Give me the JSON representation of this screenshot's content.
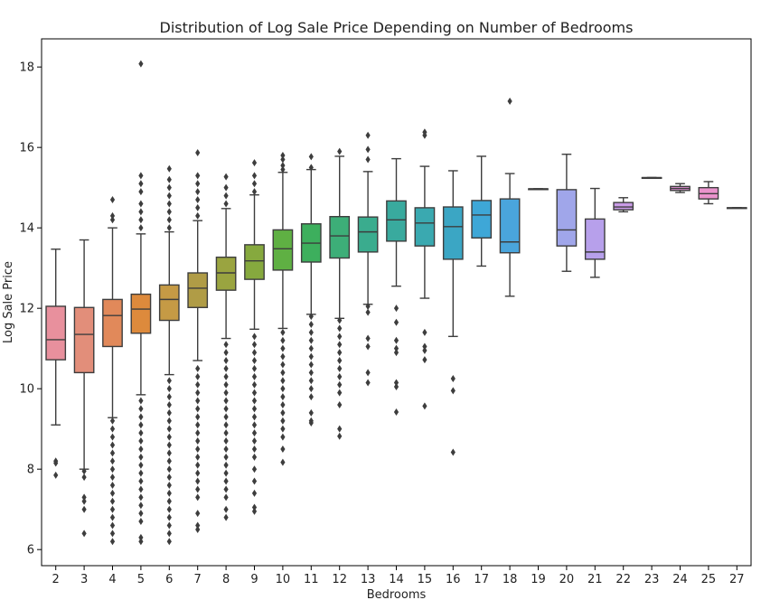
{
  "chart_data": {
    "type": "box",
    "title": "Distribution of Log Sale Price Depending on Number of Bedrooms",
    "xlabel": "Bedrooms",
    "ylabel": "Log Sale Price",
    "ylim": [
      5.6,
      18.7
    ],
    "yticks": [
      6,
      8,
      10,
      12,
      14,
      16,
      18
    ],
    "grid": false,
    "categories": [
      "2",
      "3",
      "4",
      "5",
      "6",
      "7",
      "8",
      "9",
      "10",
      "11",
      "12",
      "13",
      "14",
      "15",
      "16",
      "17",
      "18",
      "19",
      "20",
      "21",
      "22",
      "23",
      "24",
      "25",
      "27"
    ],
    "series": [
      {
        "category": "2",
        "color": "#e8909d",
        "whislo": 9.1,
        "q1": 10.72,
        "med": 11.22,
        "q3": 12.05,
        "whishi": 13.47,
        "fliers": [
          8.2,
          8.15,
          7.85
        ]
      },
      {
        "category": "3",
        "color": "#e28e7a",
        "whislo": 8.0,
        "q1": 10.4,
        "med": 11.35,
        "q3": 12.02,
        "whishi": 13.7,
        "fliers": [
          7.95,
          7.8,
          7.3,
          7.2,
          7.0,
          6.4
        ]
      },
      {
        "category": "4",
        "color": "#e1895a",
        "whislo": 9.28,
        "q1": 11.05,
        "med": 11.82,
        "q3": 12.22,
        "whishi": 14.0,
        "fliers": [
          14.2,
          14.3,
          14.7,
          9.2,
          9.0,
          8.8,
          8.6,
          8.4,
          8.2,
          8.0,
          7.8,
          7.6,
          7.4,
          7.2,
          7.0,
          6.8,
          6.6,
          6.4,
          6.2
        ]
      },
      {
        "category": "5",
        "color": "#dd8a3c",
        "whislo": 9.85,
        "q1": 11.38,
        "med": 11.98,
        "q3": 12.35,
        "whishi": 13.85,
        "fliers": [
          14.0,
          14.2,
          14.4,
          14.6,
          14.9,
          15.1,
          15.3,
          18.08,
          9.7,
          9.5,
          9.3,
          9.1,
          8.9,
          8.7,
          8.5,
          8.3,
          8.1,
          7.9,
          7.7,
          7.5,
          7.3,
          7.1,
          6.9,
          6.7,
          6.3,
          6.2
        ]
      },
      {
        "category": "6",
        "color": "#c59a45",
        "whislo": 10.35,
        "q1": 11.7,
        "med": 12.22,
        "q3": 12.58,
        "whishi": 13.9,
        "fliers": [
          14.0,
          14.2,
          14.4,
          14.6,
          14.8,
          15.0,
          15.2,
          15.47,
          10.2,
          10.0,
          9.8,
          9.6,
          9.4,
          9.2,
          9.0,
          8.8,
          8.6,
          8.4,
          8.2,
          8.0,
          7.8,
          7.6,
          7.4,
          7.2,
          7.0,
          6.8,
          6.6,
          6.4,
          6.2
        ]
      },
      {
        "category": "7",
        "color": "#b09c46",
        "whislo": 10.7,
        "q1": 12.02,
        "med": 12.5,
        "q3": 12.88,
        "whishi": 14.18,
        "fliers": [
          14.3,
          14.5,
          14.7,
          14.9,
          15.1,
          15.3,
          15.87,
          10.5,
          10.3,
          10.1,
          9.9,
          9.7,
          9.5,
          9.3,
          9.1,
          8.9,
          8.7,
          8.5,
          8.3,
          8.1,
          7.9,
          7.7,
          7.5,
          7.3,
          6.9,
          6.6,
          6.5
        ]
      },
      {
        "category": "8",
        "color": "#9aa440",
        "whislo": 11.25,
        "q1": 12.45,
        "med": 12.88,
        "q3": 13.27,
        "whishi": 14.48,
        "fliers": [
          14.6,
          14.8,
          15.0,
          15.27,
          11.1,
          10.9,
          10.7,
          10.5,
          10.3,
          10.1,
          9.9,
          9.7,
          9.5,
          9.3,
          9.1,
          8.9,
          8.7,
          8.5,
          8.3,
          8.1,
          7.9,
          7.7,
          7.5,
          7.3,
          7.0,
          6.8
        ]
      },
      {
        "category": "9",
        "color": "#86a93e",
        "whislo": 11.48,
        "q1": 12.72,
        "med": 13.18,
        "q3": 13.58,
        "whishi": 14.82,
        "fliers": [
          14.9,
          15.1,
          15.3,
          15.62,
          11.3,
          11.1,
          10.9,
          10.7,
          10.5,
          10.3,
          10.1,
          9.9,
          9.7,
          9.5,
          9.3,
          9.1,
          8.9,
          8.7,
          8.5,
          8.3,
          8.0,
          7.7,
          7.4,
          7.05,
          6.95
        ]
      },
      {
        "category": "10",
        "color": "#5fb043",
        "whislo": 11.5,
        "q1": 12.95,
        "med": 13.48,
        "q3": 13.95,
        "whishi": 15.38,
        "fliers": [
          15.45,
          15.55,
          15.7,
          15.8,
          11.4,
          11.2,
          11.0,
          10.8,
          10.6,
          10.4,
          10.2,
          10.0,
          9.8,
          9.6,
          9.4,
          9.2,
          9.0,
          8.8,
          8.5,
          8.17
        ]
      },
      {
        "category": "11",
        "color": "#3daf5d",
        "whislo": 11.85,
        "q1": 13.15,
        "med": 13.62,
        "q3": 14.1,
        "whishi": 15.45,
        "fliers": [
          15.5,
          15.77,
          11.8,
          11.6,
          11.4,
          11.2,
          11.0,
          10.8,
          10.6,
          10.4,
          10.2,
          10.0,
          9.8,
          9.4,
          9.2,
          9.15
        ]
      },
      {
        "category": "12",
        "color": "#3dae78",
        "whislo": 11.75,
        "q1": 13.25,
        "med": 13.8,
        "q3": 14.28,
        "whishi": 15.78,
        "fliers": [
          15.9,
          11.7,
          11.5,
          11.3,
          11.1,
          10.9,
          10.7,
          10.5,
          10.3,
          10.1,
          9.9,
          9.6,
          9.0,
          8.82
        ]
      },
      {
        "category": "13",
        "color": "#3aac8e",
        "whislo": 12.1,
        "q1": 13.4,
        "med": 13.9,
        "q3": 14.27,
        "whishi": 15.4,
        "fliers": [
          15.7,
          15.95,
          16.3,
          12.05,
          11.9,
          11.25,
          11.05,
          10.4,
          10.15
        ]
      },
      {
        "category": "14",
        "color": "#39aa9e",
        "whislo": 12.55,
        "q1": 13.67,
        "med": 14.2,
        "q3": 14.67,
        "whishi": 15.72,
        "fliers": [
          12.0,
          11.65,
          11.2,
          11.0,
          10.9,
          10.15,
          10.05,
          9.42
        ]
      },
      {
        "category": "15",
        "color": "#3aa9b0",
        "whislo": 12.25,
        "q1": 13.55,
        "med": 14.12,
        "q3": 14.5,
        "whishi": 15.53,
        "fliers": [
          16.3,
          16.38,
          11.4,
          11.05,
          10.95,
          10.72,
          9.57
        ]
      },
      {
        "category": "16",
        "color": "#3ba6c4",
        "whislo": 11.3,
        "q1": 13.22,
        "med": 14.03,
        "q3": 14.52,
        "whishi": 15.42,
        "fliers": [
          10.25,
          9.95,
          8.42
        ]
      },
      {
        "category": "17",
        "color": "#3ea7d7",
        "whislo": 13.05,
        "q1": 13.75,
        "med": 14.32,
        "q3": 14.68,
        "whishi": 15.78,
        "fliers": []
      },
      {
        "category": "18",
        "color": "#4aa5dc",
        "whislo": 12.3,
        "q1": 13.38,
        "med": 13.65,
        "q3": 14.72,
        "whishi": 15.35,
        "fliers": [
          17.15
        ]
      },
      {
        "category": "19",
        "color": "#7aa6e6",
        "whislo": 14.97,
        "q1": 14.97,
        "med": 14.97,
        "q3": 14.97,
        "whishi": 14.97,
        "fliers": []
      },
      {
        "category": "20",
        "color": "#a0a6ea",
        "whislo": 12.92,
        "q1": 13.55,
        "med": 13.95,
        "q3": 14.95,
        "whishi": 15.83,
        "fliers": []
      },
      {
        "category": "21",
        "color": "#b7a0eb",
        "whislo": 12.77,
        "q1": 13.22,
        "med": 13.4,
        "q3": 14.22,
        "whishi": 14.98,
        "fliers": []
      },
      {
        "category": "22",
        "color": "#c99be6",
        "whislo": 14.4,
        "q1": 14.45,
        "med": 14.52,
        "q3": 14.63,
        "whishi": 14.75,
        "fliers": []
      },
      {
        "category": "23",
        "color": "#d899e0",
        "whislo": 15.25,
        "q1": 15.25,
        "med": 15.25,
        "q3": 15.25,
        "whishi": 15.25,
        "fliers": []
      },
      {
        "category": "24",
        "color": "#e395d8",
        "whislo": 14.88,
        "q1": 14.93,
        "med": 14.98,
        "q3": 15.03,
        "whishi": 15.1,
        "fliers": []
      },
      {
        "category": "25",
        "color": "#ea93cc",
        "whislo": 14.6,
        "q1": 14.72,
        "med": 14.85,
        "q3": 15.0,
        "whishi": 15.15,
        "fliers": []
      },
      {
        "category": "27",
        "color": "#ec92c0",
        "whislo": 14.5,
        "q1": 14.5,
        "med": 14.5,
        "q3": 14.5,
        "whishi": 14.5,
        "fliers": []
      }
    ]
  }
}
